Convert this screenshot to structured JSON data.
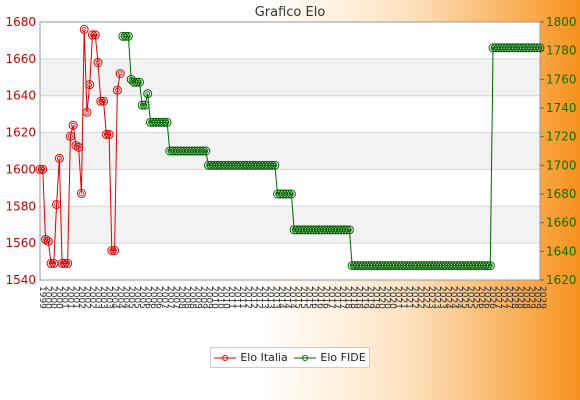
{
  "chart_data": {
    "type": "line",
    "title": "Grafico Elo",
    "y_left": {
      "ylim": [
        1540,
        1680
      ],
      "ticks": [
        1540,
        1560,
        1580,
        1600,
        1620,
        1640,
        1660,
        1680
      ]
    },
    "y_right": {
      "ylim": [
        1620,
        1800
      ],
      "ticks": [
        1620,
        1640,
        1660,
        1680,
        1700,
        1720,
        1740,
        1760,
        1780,
        1800
      ]
    },
    "x_range": [
      0,
      181
    ],
    "x_tick_labels": [
      "1999",
      "2000",
      "2000",
      "2000",
      "2001",
      "2001",
      "2001",
      "2002",
      "2002",
      "2002",
      "2003",
      "2003",
      "2003",
      "2004",
      "2004",
      "2004",
      "2005",
      "2005",
      "2005",
      "2006",
      "2006",
      "2006",
      "2007",
      "2007",
      "2007",
      "2008",
      "2008",
      "2008",
      "2009",
      "2009",
      "2009",
      "2010",
      "2010",
      "2010",
      "2011",
      "2011",
      "2011",
      "2012",
      "2012",
      "2012",
      "2013",
      "2013",
      "2013",
      "2014",
      "2014",
      "2014",
      "2015",
      "2015",
      "2015",
      "2016",
      "2016",
      "2016",
      "2017",
      "2017",
      "2017",
      "2018",
      "2018",
      "2018",
      "2019",
      "2019",
      "2019",
      "2020",
      "2020",
      "2020",
      "2021",
      "2021",
      "2021",
      "2022",
      "2022",
      "2022",
      "2023",
      "2023",
      "2023",
      "2024",
      "2024",
      "2024",
      "2025",
      "2025",
      "2025",
      "2026",
      "2026",
      "2026",
      "2027",
      "2027",
      "2027",
      "2028",
      "2028",
      "2028",
      "2029",
      "2029",
      "2029"
    ],
    "grid": true,
    "legend_position": "bottom-center",
    "series": [
      {
        "name": "Elo Italia",
        "axis": "left",
        "color": "#dd0000",
        "points": [
          [
            0,
            1600
          ],
          [
            1,
            1600
          ],
          [
            2,
            1562
          ],
          [
            3,
            1561
          ],
          [
            4,
            1549
          ],
          [
            5,
            1549
          ],
          [
            6,
            1581
          ],
          [
            7,
            1606
          ],
          [
            8,
            1549
          ],
          [
            9,
            1549
          ],
          [
            10,
            1549
          ],
          [
            11,
            1618
          ],
          [
            12,
            1624
          ],
          [
            13,
            1613
          ],
          [
            14,
            1612
          ],
          [
            15,
            1587
          ],
          [
            16,
            1676
          ],
          [
            17,
            1631
          ],
          [
            18,
            1646
          ],
          [
            19,
            1673
          ],
          [
            20,
            1673
          ],
          [
            21,
            1658
          ],
          [
            22,
            1637
          ],
          [
            23,
            1637
          ],
          [
            24,
            1619
          ],
          [
            25,
            1619
          ],
          [
            26,
            1556
          ],
          [
            27,
            1556
          ],
          [
            28,
            1643
          ],
          [
            29,
            1652
          ]
        ]
      },
      {
        "name": "Elo FIDE",
        "axis": "right",
        "color": "#006600",
        "points": [
          [
            30,
            1790
          ],
          [
            31,
            1790
          ],
          [
            32,
            1790
          ],
          [
            33,
            1760
          ],
          [
            34,
            1758
          ],
          [
            35,
            1758
          ],
          [
            36,
            1758
          ],
          [
            37,
            1742
          ],
          [
            38,
            1742
          ],
          [
            39,
            1750
          ],
          [
            40,
            1730
          ],
          [
            41,
            1730
          ],
          [
            42,
            1730
          ],
          [
            43,
            1730
          ],
          [
            44,
            1730
          ],
          [
            45,
            1730
          ],
          [
            46,
            1730
          ],
          [
            47,
            1710
          ],
          [
            48,
            1710
          ],
          [
            49,
            1710
          ],
          [
            50,
            1710
          ],
          [
            51,
            1710
          ],
          [
            52,
            1710
          ],
          [
            53,
            1710
          ],
          [
            54,
            1710
          ],
          [
            55,
            1710
          ],
          [
            56,
            1710
          ],
          [
            57,
            1710
          ],
          [
            58,
            1710
          ],
          [
            59,
            1710
          ],
          [
            60,
            1710
          ],
          [
            61,
            1700
          ],
          [
            62,
            1700
          ],
          [
            63,
            1700
          ],
          [
            64,
            1700
          ],
          [
            65,
            1700
          ],
          [
            66,
            1700
          ],
          [
            67,
            1700
          ],
          [
            68,
            1700
          ],
          [
            69,
            1700
          ],
          [
            70,
            1700
          ],
          [
            71,
            1700
          ],
          [
            72,
            1700
          ],
          [
            73,
            1700
          ],
          [
            74,
            1700
          ],
          [
            75,
            1700
          ],
          [
            76,
            1700
          ],
          [
            77,
            1700
          ],
          [
            78,
            1700
          ],
          [
            79,
            1700
          ],
          [
            80,
            1700
          ],
          [
            81,
            1700
          ],
          [
            82,
            1700
          ],
          [
            83,
            1700
          ],
          [
            84,
            1700
          ],
          [
            85,
            1700
          ],
          [
            86,
            1680
          ],
          [
            87,
            1680
          ],
          [
            88,
            1680
          ],
          [
            89,
            1680
          ],
          [
            90,
            1680
          ],
          [
            91,
            1680
          ],
          [
            92,
            1655
          ],
          [
            93,
            1655
          ],
          [
            94,
            1655
          ],
          [
            95,
            1655
          ],
          [
            96,
            1655
          ],
          [
            97,
            1655
          ],
          [
            98,
            1655
          ],
          [
            99,
            1655
          ],
          [
            100,
            1655
          ],
          [
            101,
            1655
          ],
          [
            102,
            1655
          ],
          [
            103,
            1655
          ],
          [
            104,
            1655
          ],
          [
            105,
            1655
          ],
          [
            106,
            1655
          ],
          [
            107,
            1655
          ],
          [
            108,
            1655
          ],
          [
            109,
            1655
          ],
          [
            110,
            1655
          ],
          [
            111,
            1655
          ],
          [
            112,
            1655
          ],
          [
            113,
            1630
          ],
          [
            114,
            1630
          ],
          [
            115,
            1630
          ],
          [
            116,
            1630
          ],
          [
            117,
            1630
          ],
          [
            118,
            1630
          ],
          [
            119,
            1630
          ],
          [
            120,
            1630
          ],
          [
            121,
            1630
          ],
          [
            122,
            1630
          ],
          [
            123,
            1630
          ],
          [
            124,
            1630
          ],
          [
            125,
            1630
          ],
          [
            126,
            1630
          ],
          [
            127,
            1630
          ],
          [
            128,
            1630
          ],
          [
            129,
            1630
          ],
          [
            130,
            1630
          ],
          [
            131,
            1630
          ],
          [
            132,
            1630
          ],
          [
            133,
            1630
          ],
          [
            134,
            1630
          ],
          [
            135,
            1630
          ],
          [
            136,
            1630
          ],
          [
            137,
            1630
          ],
          [
            138,
            1630
          ],
          [
            139,
            1630
          ],
          [
            140,
            1630
          ],
          [
            141,
            1630
          ],
          [
            142,
            1630
          ],
          [
            143,
            1630
          ],
          [
            144,
            1630
          ],
          [
            145,
            1630
          ],
          [
            146,
            1630
          ],
          [
            147,
            1630
          ],
          [
            148,
            1630
          ],
          [
            149,
            1630
          ],
          [
            150,
            1630
          ],
          [
            151,
            1630
          ],
          [
            152,
            1630
          ],
          [
            153,
            1630
          ],
          [
            154,
            1630
          ],
          [
            155,
            1630
          ],
          [
            156,
            1630
          ],
          [
            157,
            1630
          ],
          [
            158,
            1630
          ],
          [
            159,
            1630
          ],
          [
            160,
            1630
          ],
          [
            161,
            1630
          ],
          [
            162,
            1630
          ],
          [
            163,
            1630
          ],
          [
            164,
            1782
          ],
          [
            165,
            1782
          ],
          [
            166,
            1782
          ],
          [
            167,
            1782
          ],
          [
            168,
            1782
          ],
          [
            169,
            1782
          ],
          [
            170,
            1782
          ],
          [
            171,
            1782
          ],
          [
            172,
            1782
          ],
          [
            173,
            1782
          ],
          [
            174,
            1782
          ],
          [
            175,
            1782
          ],
          [
            176,
            1782
          ],
          [
            177,
            1782
          ],
          [
            178,
            1782
          ],
          [
            179,
            1782
          ],
          [
            180,
            1782
          ],
          [
            181,
            1782
          ]
        ]
      }
    ]
  }
}
